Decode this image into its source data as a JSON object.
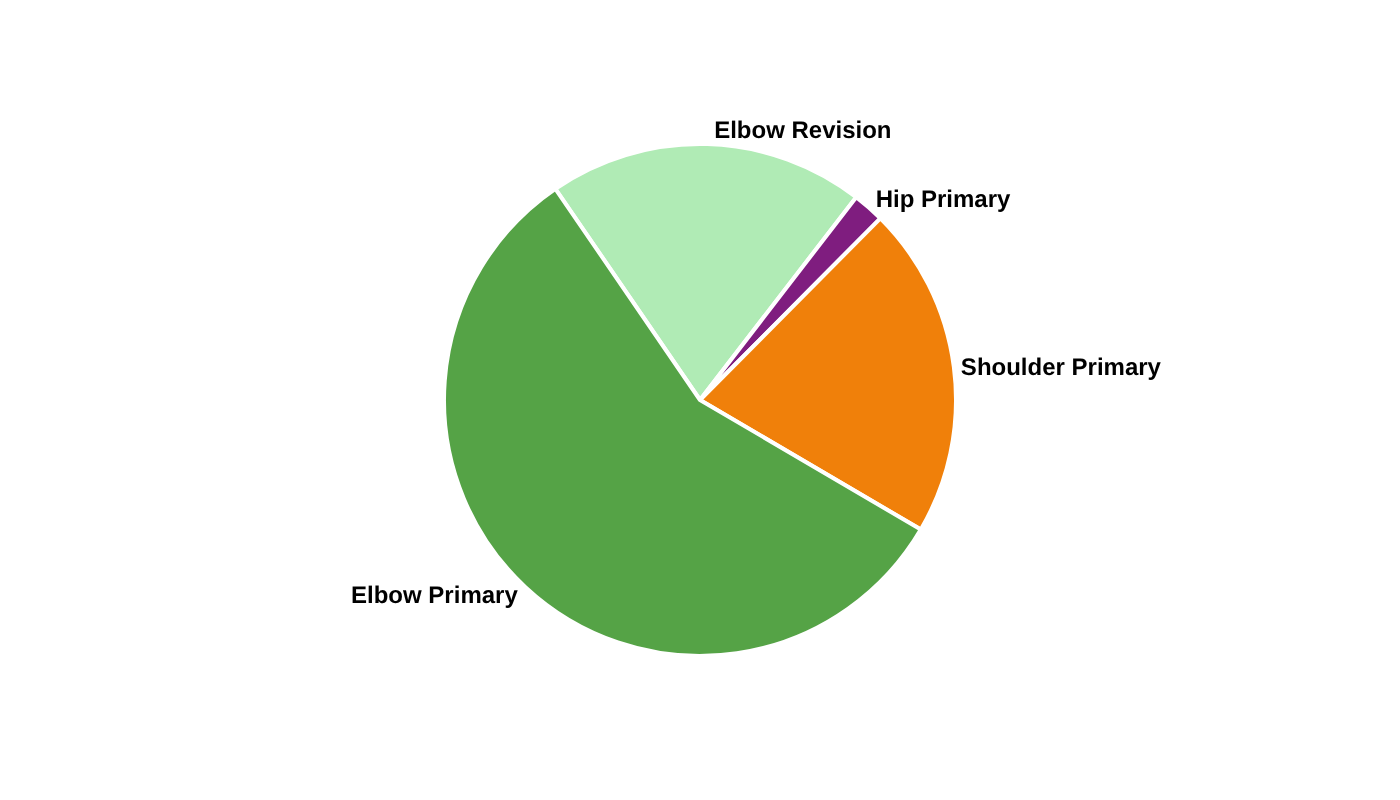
{
  "chart_data": {
    "type": "pie",
    "categories": [
      "Elbow Revision",
      "Hip Primary",
      "Shoulder Primary",
      "Elbow Primary"
    ],
    "values": [
      20,
      2,
      21,
      57
    ],
    "colors": [
      "#b0ebb5",
      "#7f1d7f",
      "#f0800a",
      "#55a346"
    ],
    "legend": false
  }
}
